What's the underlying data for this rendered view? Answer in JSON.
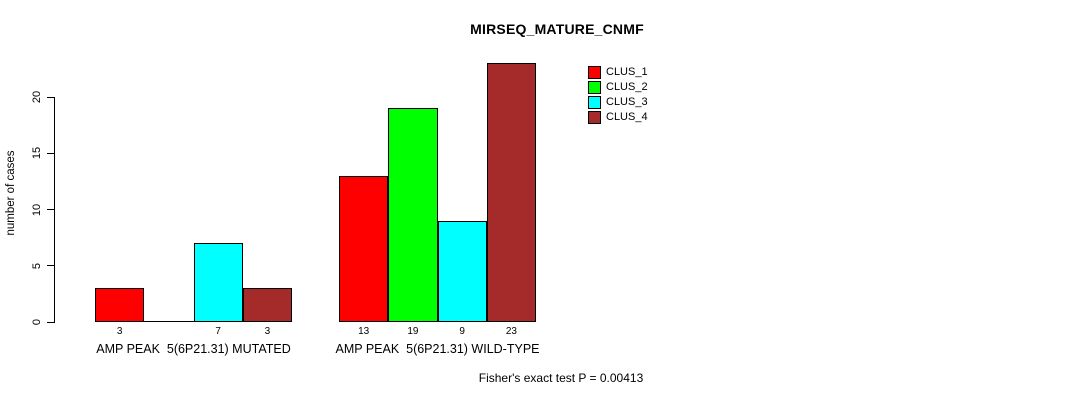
{
  "chart_data": {
    "type": "bar",
    "title": "MIRSEQ_MATURE_CNMF",
    "ylabel": "number of cases",
    "xlabel": "",
    "yticks": [
      0,
      5,
      10,
      15,
      20
    ],
    "ylim": [
      0,
      23
    ],
    "grid": false,
    "legend_position": "top-right",
    "categories": [
      "AMP PEAK  5(6P21.31) MUTATED",
      "AMP PEAK  5(6P21.31) WILD-TYPE"
    ],
    "groups": [
      {
        "label": "AMP PEAK  5(6P21.31) MUTATED",
        "values": [
          3,
          0,
          7,
          3
        ]
      },
      {
        "label": "AMP PEAK  5(6P21.31) WILD-TYPE",
        "values": [
          13,
          19,
          9,
          23
        ]
      }
    ],
    "series": [
      {
        "name": "CLUS_1",
        "color": "#FF0000"
      },
      {
        "name": "CLUS_2",
        "color": "#00FF00"
      },
      {
        "name": "CLUS_3",
        "color": "#00FFFF"
      },
      {
        "name": "CLUS_4",
        "color": "#A52A2A"
      }
    ],
    "bar_border_color": "#000000",
    "annotation": "Fisher's exact test P = 0.00413"
  }
}
